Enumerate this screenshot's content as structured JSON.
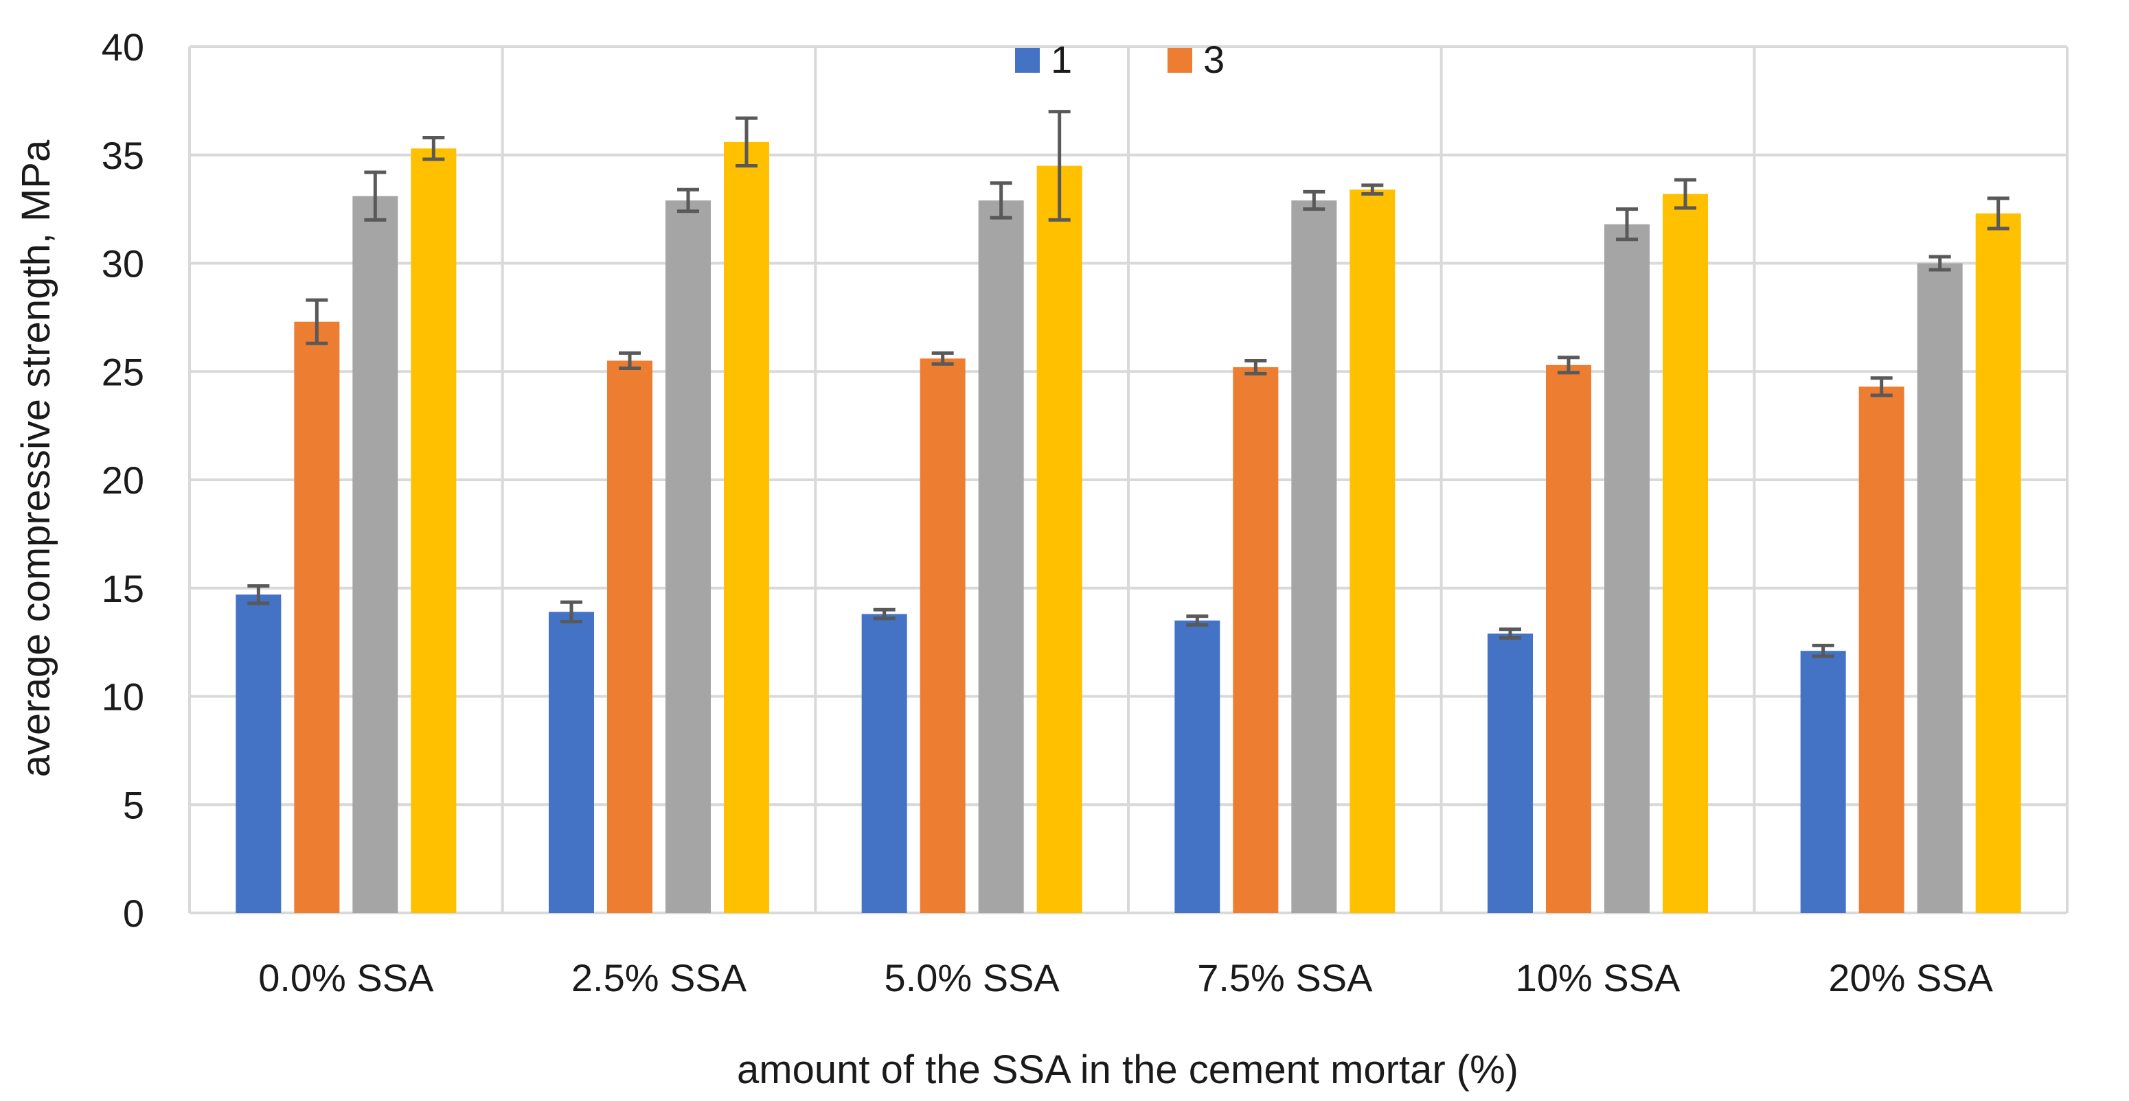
{
  "chart_data": {
    "type": "bar",
    "title": "",
    "xlabel": "amount of the SSA in the cement mortar (%)",
    "ylabel": "average compressive strength, MPa",
    "ylim": [
      0,
      40
    ],
    "yticks": [
      0,
      5,
      10,
      15,
      20,
      25,
      30,
      35,
      40
    ],
    "grid": true,
    "legend_position": "top-center",
    "categories": [
      "0.0% SSA",
      "2.5% SSA",
      "5.0% SSA",
      "7.5% SSA",
      "10% SSA",
      "20% SSA"
    ],
    "series": [
      {
        "name": "1",
        "color": "#4472C4",
        "show_in_legend": true,
        "values": [
          14.7,
          13.9,
          13.8,
          13.5,
          12.9,
          12.1
        ],
        "errors": [
          0.4,
          0.45,
          0.2,
          0.2,
          0.2,
          0.25
        ]
      },
      {
        "name": "3",
        "color": "#ED7D31",
        "show_in_legend": true,
        "values": [
          27.3,
          25.5,
          25.6,
          25.2,
          25.3,
          24.3
        ],
        "errors": [
          1.0,
          0.35,
          0.25,
          0.3,
          0.35,
          0.4
        ]
      },
      {
        "name": "",
        "color": "#A5A5A5",
        "show_in_legend": false,
        "values": [
          33.1,
          32.9,
          32.9,
          32.9,
          31.8,
          30.0
        ],
        "errors": [
          1.1,
          0.5,
          0.8,
          0.4,
          0.7,
          0.3
        ]
      },
      {
        "name": "",
        "color": "#FFC000",
        "show_in_legend": false,
        "values": [
          35.3,
          35.6,
          34.5,
          33.4,
          33.2,
          32.3
        ],
        "errors": [
          0.5,
          1.1,
          2.5,
          0.2,
          0.65,
          0.7
        ]
      }
    ],
    "error_bar_color": "#595959"
  }
}
